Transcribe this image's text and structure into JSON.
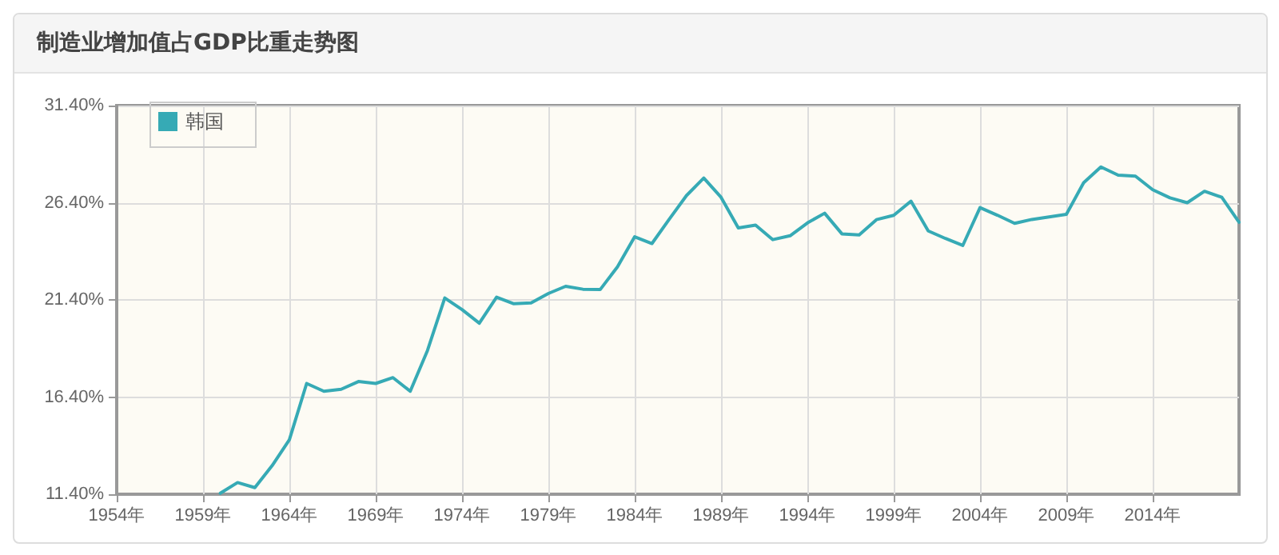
{
  "chart_data": {
    "type": "line",
    "title": "制造业增加值占GDP比重走势图",
    "x": [
      1960,
      1961,
      1962,
      1963,
      1964,
      1965,
      1966,
      1967,
      1968,
      1969,
      1970,
      1971,
      1972,
      1973,
      1974,
      1975,
      1976,
      1977,
      1978,
      1979,
      1980,
      1981,
      1982,
      1983,
      1984,
      1985,
      1986,
      1987,
      1988,
      1989,
      1990,
      1991,
      1992,
      1993,
      1994,
      1995,
      1996,
      1997,
      1998,
      1999,
      2000,
      2001,
      2002,
      2003,
      2004,
      2005,
      2006,
      2007,
      2008,
      2009,
      2010,
      2011,
      2012,
      2013,
      2014,
      2015,
      2016,
      2017,
      2018,
      2019
    ],
    "series": [
      {
        "name": "韩国",
        "color": "#36aab5",
        "values": [
          11.45,
          12.0,
          11.74,
          12.87,
          14.2,
          17.1,
          16.7,
          16.8,
          17.2,
          17.1,
          17.4,
          16.7,
          18.8,
          21.5,
          20.9,
          20.2,
          21.54,
          21.2,
          21.25,
          21.73,
          22.1,
          21.95,
          21.93,
          23.1,
          24.65,
          24.3,
          25.55,
          26.77,
          27.67,
          26.68,
          25.1,
          25.25,
          24.5,
          24.7,
          25.36,
          25.86,
          24.8,
          24.74,
          25.53,
          25.75,
          26.48,
          24.95,
          24.56,
          24.2,
          26.15,
          25.76,
          25.34,
          25.54,
          25.67,
          25.8,
          27.43,
          28.24,
          27.82,
          27.77,
          27.07,
          26.65,
          26.4,
          26.99,
          26.68,
          25.4
        ]
      }
    ],
    "xlim": [
      1954,
      2019
    ],
    "xticks": [
      {
        "value": 1954,
        "label": "1954年"
      },
      {
        "value": 1959,
        "label": "1959年"
      },
      {
        "value": 1964,
        "label": "1964年"
      },
      {
        "value": 1969,
        "label": "1969年"
      },
      {
        "value": 1974,
        "label": "1974年"
      },
      {
        "value": 1979,
        "label": "1979年"
      },
      {
        "value": 1984,
        "label": "1984年"
      },
      {
        "value": 1989,
        "label": "1989年"
      },
      {
        "value": 1994,
        "label": "1994年"
      },
      {
        "value": 1999,
        "label": "1999年"
      },
      {
        "value": 2004,
        "label": "2004年"
      },
      {
        "value": 2009,
        "label": "2009年"
      },
      {
        "value": 2014,
        "label": "2014年"
      }
    ],
    "ylim": [
      11.4,
      31.4
    ],
    "yticks": [
      {
        "value": 11.4,
        "label": "11.40%"
      },
      {
        "value": 16.4,
        "label": "16.40%"
      },
      {
        "value": 21.4,
        "label": "21.40%"
      },
      {
        "value": 26.4,
        "label": "26.40%"
      },
      {
        "value": 31.4,
        "label": "31.40%"
      }
    ],
    "grid": true,
    "legend": "top left",
    "marker": "none",
    "line_style": "solid"
  }
}
